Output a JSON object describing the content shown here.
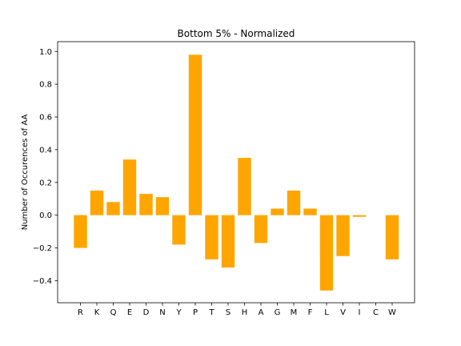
{
  "chart_data": {
    "type": "bar",
    "title": "Bottom 5% - Normalized",
    "xlabel": "",
    "ylabel": "Number of Occurences of AA",
    "categories": [
      "R",
      "K",
      "Q",
      "E",
      "D",
      "N",
      "Y",
      "P",
      "T",
      "S",
      "H",
      "A",
      "G",
      "M",
      "F",
      "L",
      "V",
      "I",
      "C",
      "W"
    ],
    "values": [
      -0.2,
      0.15,
      0.08,
      0.34,
      0.13,
      0.11,
      -0.18,
      0.98,
      -0.27,
      -0.32,
      0.35,
      -0.17,
      0.04,
      0.15,
      0.04,
      -0.46,
      -0.25,
      -0.01,
      0.0,
      -0.27
    ],
    "ylim": [
      -0.535,
      1.06
    ],
    "yticks": [
      -0.4,
      -0.2,
      0.0,
      0.2,
      0.4,
      0.6,
      0.8,
      1.0
    ],
    "ytick_labels": [
      "−0.4",
      "−0.2",
      "0.0",
      "0.2",
      "0.4",
      "0.6",
      "0.8",
      "1.0"
    ],
    "bar_color": "#ffa500",
    "grid": false,
    "legend": "none"
  }
}
